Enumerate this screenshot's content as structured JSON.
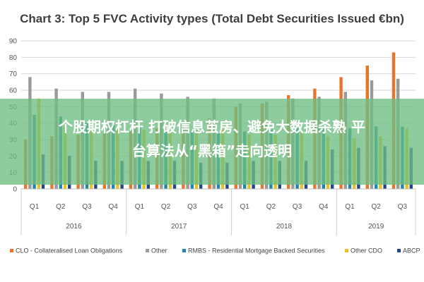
{
  "chart_data": {
    "type": "bar",
    "title": "Chart 3: Top 5 FVC Activity types (Total Debt Securities Issued €bn)",
    "xlabel": "",
    "ylabel": "",
    "ylim": [
      0,
      90
    ],
    "yticks": [
      0,
      10,
      20,
      30,
      40,
      50,
      60,
      70,
      80,
      90
    ],
    "grid": true,
    "legend": "bottom",
    "categories": [
      "Q1",
      "Q2",
      "Q3",
      "Q4",
      "Q1",
      "Q2",
      "Q3",
      "Q4",
      "Q1",
      "Q2",
      "Q3",
      "Q4",
      "Q1",
      "Q2",
      "Q3"
    ],
    "years": [
      {
        "label": "2016",
        "span": 4
      },
      {
        "label": "2017",
        "span": 4
      },
      {
        "label": "2018",
        "span": 4
      },
      {
        "label": "2019",
        "span": 3
      }
    ],
    "series": [
      {
        "name": "CLO - Collateralised Loan Obligations",
        "color": "#e8752a",
        "values": [
          30,
          32,
          33,
          34,
          35,
          37,
          38,
          43,
          50,
          52,
          57,
          61,
          68,
          75,
          83
        ]
      },
      {
        "name": "Other",
        "color": "#9a9a9a",
        "values": [
          68,
          61,
          59,
          59,
          61,
          58,
          56,
          55,
          52,
          53,
          55,
          56,
          59,
          66,
          67
        ]
      },
      {
        "name": "RMBS - Residential Mortgage Backed Securities",
        "color": "#1f86a8",
        "values": [
          45,
          44,
          40,
          39,
          38,
          36,
          35,
          34,
          35,
          36,
          37,
          38,
          37,
          38,
          38
        ]
      },
      {
        "name": "Other CDO",
        "color": "#e8c21e",
        "values": [
          55,
          38,
          37,
          37,
          36,
          35,
          36,
          36,
          33,
          33,
          34,
          32,
          31,
          32,
          37
        ]
      },
      {
        "name": "ABCP",
        "color": "#27448a",
        "values": [
          21,
          20,
          17,
          17,
          17,
          17,
          16,
          16,
          17,
          17,
          17,
          24,
          25,
          26,
          25
        ]
      }
    ]
  },
  "overlay": {
    "lines": [
      "个股期权杠杆 打破信息茧房、避免大数据杀熟 平",
      "台算法从“黑箱”走向透明"
    ]
  }
}
